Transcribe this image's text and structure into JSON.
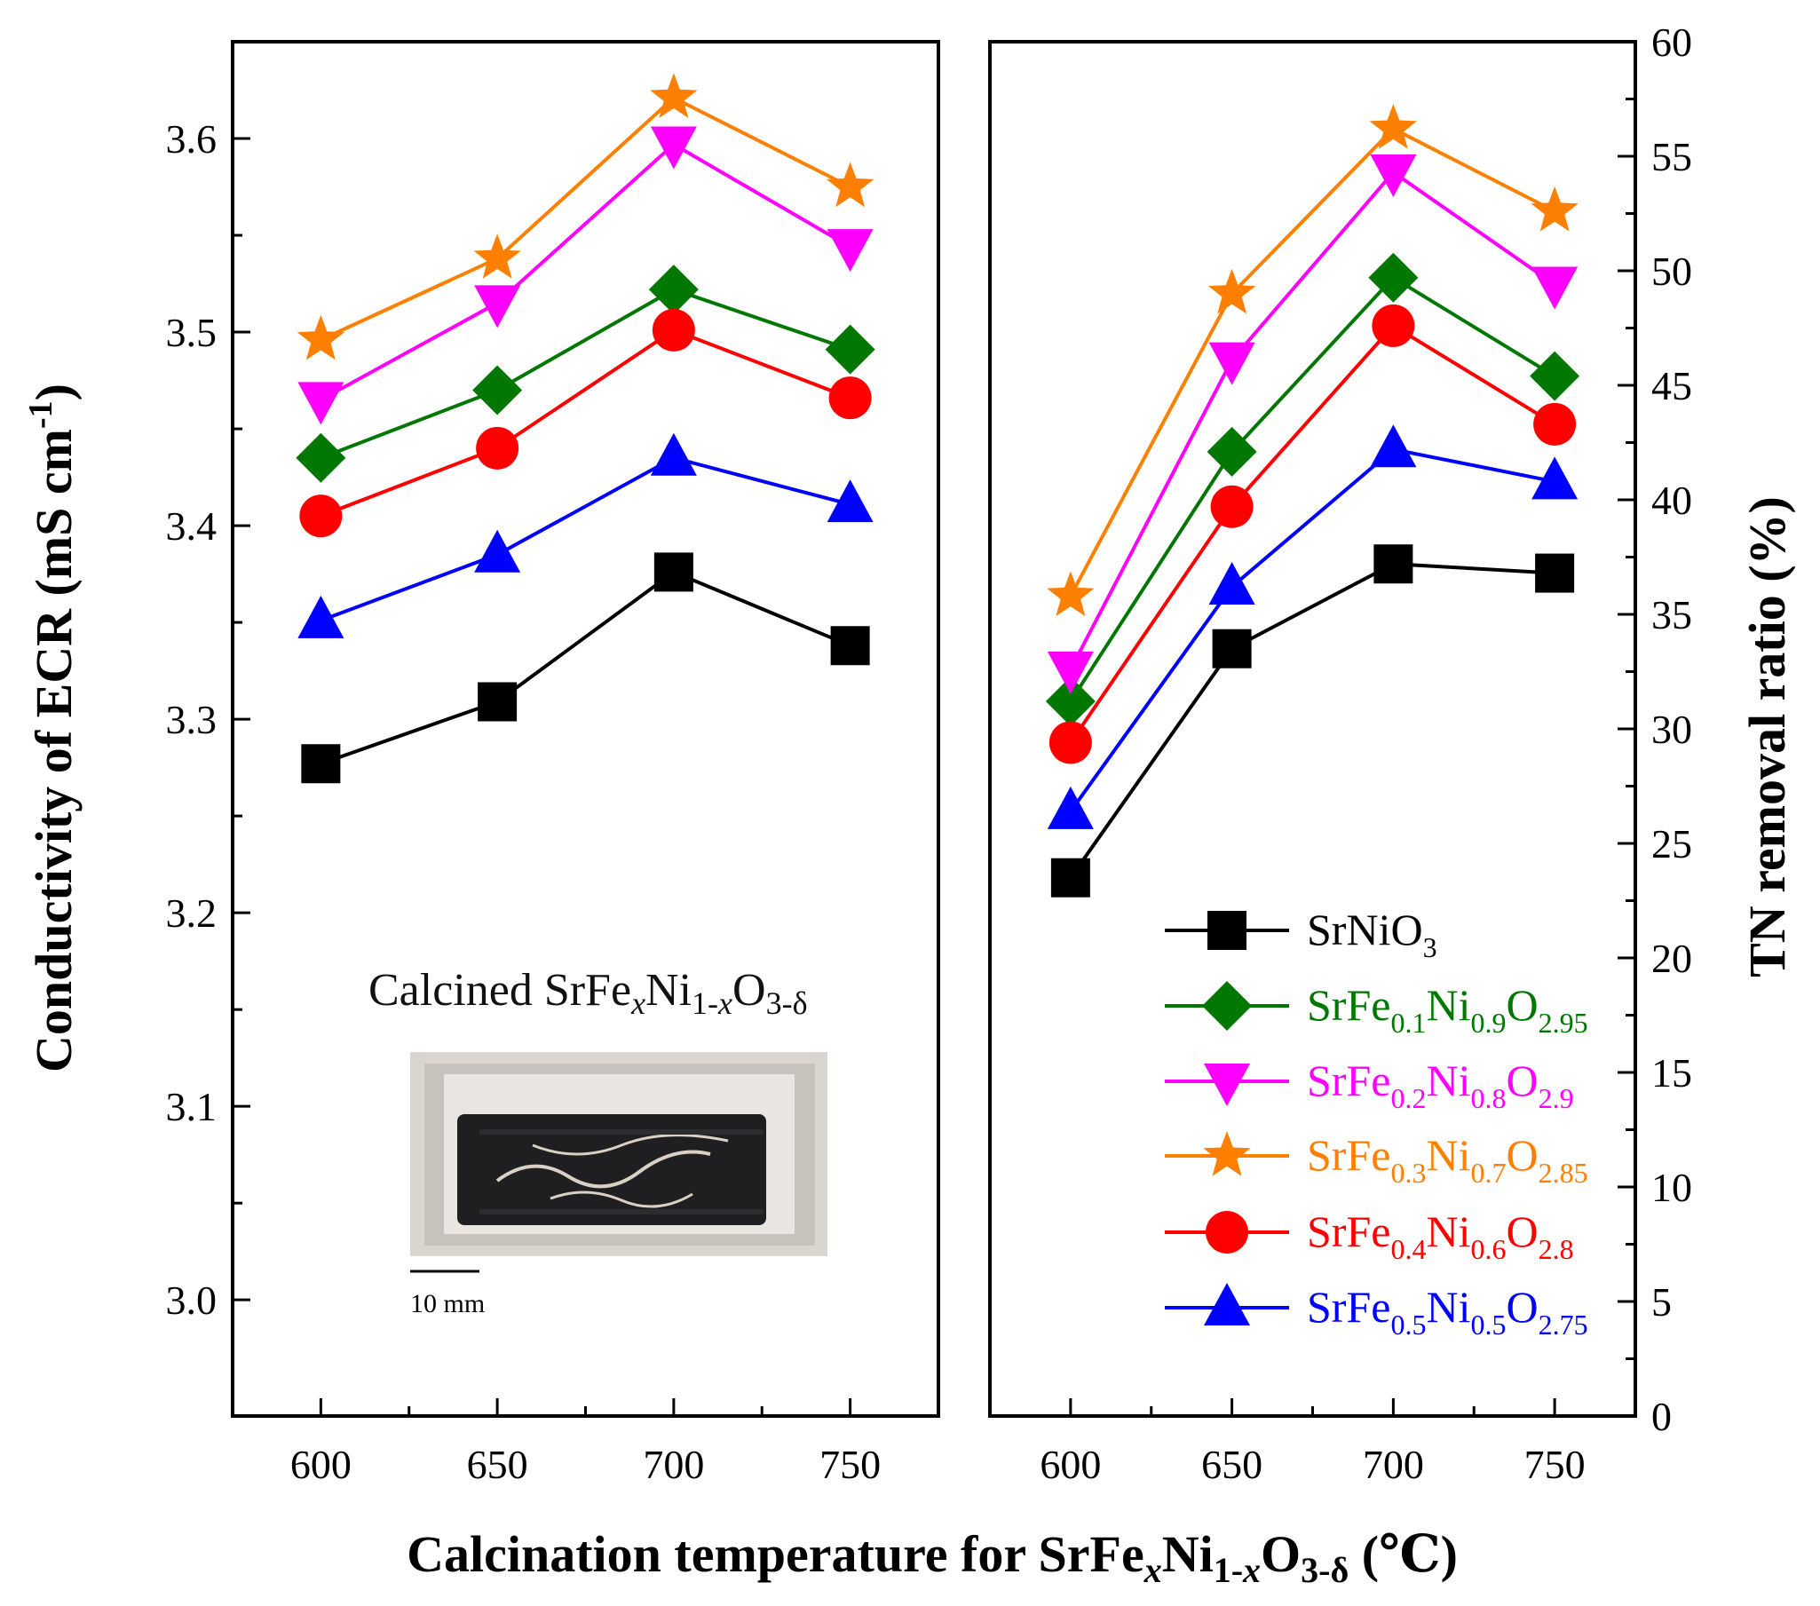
{
  "chart_data": [
    {
      "type": "line",
      "panel": "left",
      "ylabel": "Conductivity of ECR (mS cm⁻¹)",
      "ylabel_parts": {
        "pre": "Conductivity of ECR (mS cm",
        "sup": "-1",
        "post": ")"
      },
      "x": [
        600,
        650,
        700,
        750
      ],
      "xlim": [
        575,
        775
      ],
      "ylim": [
        2.94,
        3.65
      ],
      "yticks": [
        "3.0",
        "3.1",
        "3.2",
        "3.3",
        "3.4",
        "3.5",
        "3.6"
      ],
      "xticks": [
        "600",
        "650",
        "700",
        "750"
      ],
      "series": [
        {
          "name": "SrNiO3",
          "values": [
            3.277,
            3.309,
            3.376,
            3.338
          ]
        },
        {
          "name": "SrFe0.1Ni0.9O2.95",
          "values": [
            3.435,
            3.47,
            3.522,
            3.491
          ]
        },
        {
          "name": "SrFe0.2Ni0.8O2.9",
          "values": [
            3.465,
            3.515,
            3.597,
            3.544
          ]
        },
        {
          "name": "SrFe0.3Ni0.7O2.85",
          "values": [
            3.496,
            3.538,
            3.621,
            3.575
          ]
        },
        {
          "name": "SrFe0.4Ni0.6O2.8",
          "values": [
            3.405,
            3.44,
            3.501,
            3.466
          ]
        },
        {
          "name": "SrFe0.5Ni0.5O2.75",
          "values": [
            3.351,
            3.385,
            3.435,
            3.411
          ]
        }
      ],
      "inset": {
        "title_parts": {
          "a": "Calcined SrFe",
          "x": "x",
          "b": "Ni",
          "c": "1-",
          "d": "x",
          "e": "O",
          "f": "3-δ"
        },
        "scale_bar": "10 mm"
      }
    },
    {
      "type": "line",
      "panel": "right",
      "ylabel": "TN removal ratio (%)",
      "x": [
        600,
        650,
        700,
        750
      ],
      "xlim": [
        575,
        775
      ],
      "ylim": [
        0,
        60
      ],
      "yticks": [
        "0",
        "5",
        "10",
        "15",
        "20",
        "25",
        "30",
        "35",
        "40",
        "45",
        "50",
        "55",
        "60"
      ],
      "xticks": [
        "600",
        "650",
        "700",
        "750"
      ],
      "series": [
        {
          "name": "SrNiO3",
          "values": [
            23.5,
            33.5,
            37.2,
            36.8
          ]
        },
        {
          "name": "SrFe0.1Ni0.9O2.95",
          "values": [
            31.2,
            42.1,
            49.7,
            45.4
          ]
        },
        {
          "name": "SrFe0.2Ni0.8O2.9",
          "values": [
            32.6,
            46.1,
            54.3,
            49.4
          ]
        },
        {
          "name": "SrFe0.3Ni0.7O2.85",
          "values": [
            35.8,
            49.0,
            56.2,
            52.6
          ]
        },
        {
          "name": "SrFe0.4Ni0.6O2.8",
          "values": [
            29.4,
            39.7,
            47.6,
            43.3
          ]
        },
        {
          "name": "SrFe0.5Ni0.5O2.75",
          "values": [
            26.4,
            36.2,
            42.2,
            40.8
          ]
        }
      ]
    }
  ],
  "xlabel_parts": {
    "a": "Calcination temperature for SrFe",
    "x": "x",
    "b": "Ni",
    "c": "1-",
    "d": "x",
    "e": "O",
    "f": "3-δ",
    "g": " (℃)"
  },
  "legend": [
    {
      "key": "srnio3",
      "base": "SrNiO",
      "subs": [
        "3"
      ],
      "color": "#000000",
      "marker": "square"
    },
    {
      "key": "fe01",
      "base": "SrFe",
      "subs": [
        "0.1",
        "0.9",
        "2.95"
      ],
      "color": "#007700",
      "marker": "diamond"
    },
    {
      "key": "fe02",
      "base": "SrFe",
      "subs": [
        "0.2",
        "0.8",
        "2.9"
      ],
      "color": "#ff00ff",
      "marker": "triangle-down"
    },
    {
      "key": "fe03",
      "base": "SrFe",
      "subs": [
        "0.3",
        "0.7",
        "2.85"
      ],
      "color": "#ff8000",
      "marker": "star"
    },
    {
      "key": "fe04",
      "base": "SrFe",
      "subs": [
        "0.4",
        "0.6",
        "2.8"
      ],
      "color": "#ff0000",
      "marker": "circle"
    },
    {
      "key": "fe05",
      "base": "SrFe",
      "subs": [
        "0.5",
        "0.5",
        "2.75"
      ],
      "color": "#0000ff",
      "marker": "triangle-up"
    }
  ],
  "legend_words": {
    "ni": "Ni",
    "o": "O"
  }
}
